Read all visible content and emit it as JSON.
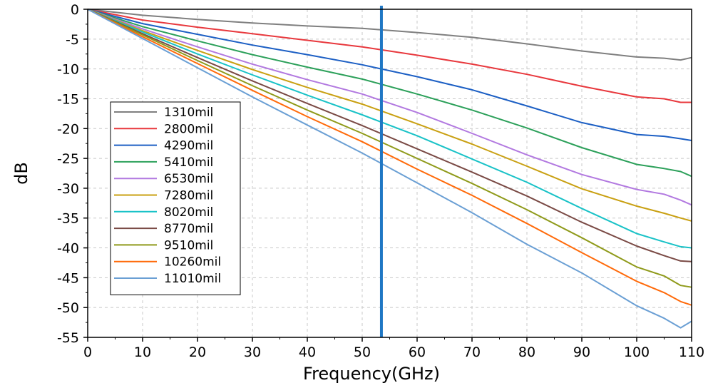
{
  "chart_data": {
    "type": "line",
    "xlabel": "Frequency(GHz)",
    "ylabel": "dB",
    "xlim": [
      0,
      110
    ],
    "ylim": [
      -55,
      0
    ],
    "x_ticks": [
      "0",
      "10",
      "20",
      "30",
      "40",
      "50",
      "60",
      "70",
      "80",
      "90",
      "100",
      "110"
    ],
    "y_ticks": [
      "0",
      "-5",
      "-10",
      "-15",
      "-20",
      "-25",
      "-30",
      "-35",
      "-40",
      "-45",
      "-50",
      "-55"
    ],
    "grid": true,
    "legend_position": "center-left",
    "marker_line": {
      "x": 53.5,
      "color": "#1f77c4"
    },
    "x": [
      0,
      10,
      20,
      30,
      40,
      50,
      60,
      70,
      80,
      90,
      100,
      105,
      108,
      110
    ],
    "series": [
      {
        "name": "1310mil",
        "color": "#7f7f7f",
        "values": [
          0,
          -1.0,
          -1.7,
          -2.3,
          -2.8,
          -3.2,
          -3.9,
          -4.7,
          -5.8,
          -7.0,
          -8.0,
          -8.2,
          -8.5,
          -8.1
        ]
      },
      {
        "name": "2800mil",
        "color": "#e8383d",
        "values": [
          0,
          -1.8,
          -3.0,
          -4.1,
          -5.2,
          -6.3,
          -7.7,
          -9.2,
          -10.9,
          -12.9,
          -14.7,
          -15.0,
          -15.6,
          -15.6
        ]
      },
      {
        "name": "4290mil",
        "color": "#1c5fc4",
        "values": [
          0,
          -2.4,
          -4.2,
          -6.0,
          -7.6,
          -9.3,
          -11.3,
          -13.5,
          -16.2,
          -19.0,
          -21.0,
          -21.3,
          -21.7,
          -22.0
        ]
      },
      {
        "name": "5410mil",
        "color": "#2ca05a",
        "values": [
          0,
          -2.9,
          -5.3,
          -7.6,
          -9.7,
          -11.7,
          -14.2,
          -16.9,
          -19.9,
          -23.2,
          -26.0,
          -26.7,
          -27.2,
          -28.0
        ]
      },
      {
        "name": "6530mil",
        "color": "#b279e0",
        "values": [
          0,
          -3.3,
          -6.3,
          -9.2,
          -11.8,
          -14.2,
          -17.3,
          -20.8,
          -24.4,
          -27.7,
          -30.2,
          -31.0,
          -32.0,
          -32.8
        ]
      },
      {
        "name": "7280mil",
        "color": "#c9a012",
        "values": [
          0,
          -3.6,
          -6.9,
          -10.1,
          -13.1,
          -15.9,
          -19.2,
          -22.6,
          -26.3,
          -30.1,
          -33.0,
          -34.2,
          -35.0,
          -35.5
        ]
      },
      {
        "name": "8020mil",
        "color": "#19c2c7",
        "values": [
          0,
          -3.8,
          -7.5,
          -11.0,
          -14.4,
          -17.7,
          -21.2,
          -25.1,
          -29.0,
          -33.4,
          -37.6,
          -39.0,
          -39.8,
          -40.0
        ]
      },
      {
        "name": "8770mil",
        "color": "#7a4a45",
        "values": [
          0,
          -4.1,
          -8.1,
          -12.0,
          -15.8,
          -19.5,
          -23.4,
          -27.3,
          -31.3,
          -35.7,
          -39.7,
          -41.3,
          -42.2,
          -42.3
        ]
      },
      {
        "name": "9510mil",
        "color": "#8f9a1a",
        "values": [
          0,
          -4.3,
          -8.6,
          -12.8,
          -16.9,
          -20.8,
          -25.0,
          -29.2,
          -33.6,
          -38.3,
          -43.2,
          -44.7,
          -46.3,
          -46.6
        ]
      },
      {
        "name": "10260mil",
        "color": "#ff6a0a",
        "values": [
          0,
          -4.6,
          -9.1,
          -13.6,
          -18.0,
          -22.2,
          -26.8,
          -31.2,
          -35.9,
          -40.8,
          -45.6,
          -47.5,
          -49.0,
          -49.6
        ]
      },
      {
        "name": "11010mil",
        "color": "#6a9fd4",
        "values": [
          0,
          -4.9,
          -9.8,
          -14.7,
          -19.4,
          -24.1,
          -29.1,
          -34.1,
          -39.4,
          -44.2,
          -49.7,
          -51.8,
          -53.4,
          -52.3
        ]
      }
    ]
  }
}
